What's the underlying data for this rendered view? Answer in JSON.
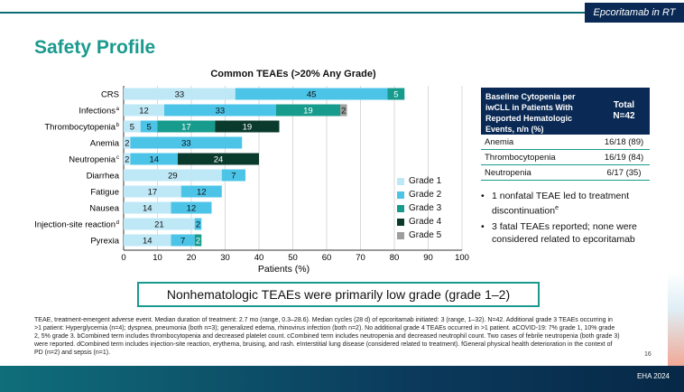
{
  "header": {
    "tag": "Epcoritamab in RT",
    "title": "Safety Profile"
  },
  "chart_data": {
    "type": "bar",
    "orientation": "horizontal",
    "stacked": true,
    "title": "Common TEAEs (>20% Any Grade)",
    "xlabel": "Patients (%)",
    "xlim": [
      0,
      100
    ],
    "xticks": [
      0,
      10,
      20,
      30,
      40,
      50,
      60,
      70,
      80,
      90,
      100
    ],
    "categories": [
      "CRS",
      "Infections",
      "Thrombocytopenia",
      "Anemia",
      "Neutropenia",
      "Diarrhea",
      "Fatigue",
      "Nausea",
      "Injection-site reaction",
      "Pyrexia"
    ],
    "category_superscripts": [
      "",
      "a",
      "b",
      "",
      "c",
      "",
      "",
      "",
      "d",
      ""
    ],
    "series": [
      {
        "name": "Grade 1",
        "color": "#bfe8f7",
        "values": [
          33,
          12,
          5,
          2,
          2,
          29,
          17,
          14,
          21,
          14
        ]
      },
      {
        "name": "Grade 2",
        "color": "#4cc4e8",
        "values": [
          45,
          33,
          5,
          33,
          14,
          7,
          12,
          12,
          2,
          7
        ]
      },
      {
        "name": "Grade 3",
        "color": "#169b8c",
        "values": [
          5,
          19,
          17,
          0,
          0,
          0,
          0,
          0,
          0,
          2
        ]
      },
      {
        "name": "Grade 4",
        "color": "#0a3a2c",
        "values": [
          0,
          0,
          19,
          0,
          24,
          0,
          0,
          0,
          0,
          0
        ]
      },
      {
        "name": "Grade 5",
        "color": "#9e9e9e",
        "values": [
          0,
          2,
          0,
          0,
          0,
          0,
          0,
          0,
          0,
          0
        ]
      }
    ],
    "grid": true,
    "legend": "bottom-right"
  },
  "table": {
    "header_col1": "Baseline Cytopenia per iwCLL in Patients With Reported Hematologic Events, n/n (%)",
    "header_col2_line1": "Total",
    "header_col2_line2": "N=42",
    "rows": [
      {
        "label": "Anemia",
        "value": "16/18 (89)"
      },
      {
        "label": "Thrombocytopenia",
        "value": "16/19 (84)"
      },
      {
        "label": "Neutropenia",
        "value": "6/17 (35)"
      }
    ]
  },
  "bullets": [
    "1 nonfatal TEAE led to treatment discontinuation",
    "3 fatal TEAEs reported; none were considered related to epcoritamab"
  ],
  "bullet_superscripts": [
    "e",
    "f"
  ],
  "callout": "Nonhematologic TEAEs were primarily low grade (grade 1–2)",
  "footnotes": "TEAE, treatment-emergent adverse event. Median duration of treatment: 2.7 mo (range, 0.3–28.6). Median cycles (28 d) of epcoritamab initiated: 3 (range, 1–32). N=42. Additional grade 3 TEAEs occurring in >1 patient: Hyperglycemia (n=4); dyspnea, pneumonia (both n=3); generalized edema, rhinovirus infection (both n=2). No additional grade 4 TEAEs occurred in >1 patient. aCOVID-19: 7% grade 1, 10% grade 2, 5% grade 3. bCombined term includes thrombocytopenia and decreased platelet count. cCombined term includes neutropenia and decreased neutrophil count. Two cases of febrile neutropenia (both grade 3) were reported. dCombined term includes injection-site reaction, erythema, bruising, and rash. eInterstitial lung disease (considered related to treatment). fGeneral physical health deterioration in the context of PD (n=2) and sepsis (n=1).",
  "page_number": "16",
  "footer_label": "EHA 2024"
}
